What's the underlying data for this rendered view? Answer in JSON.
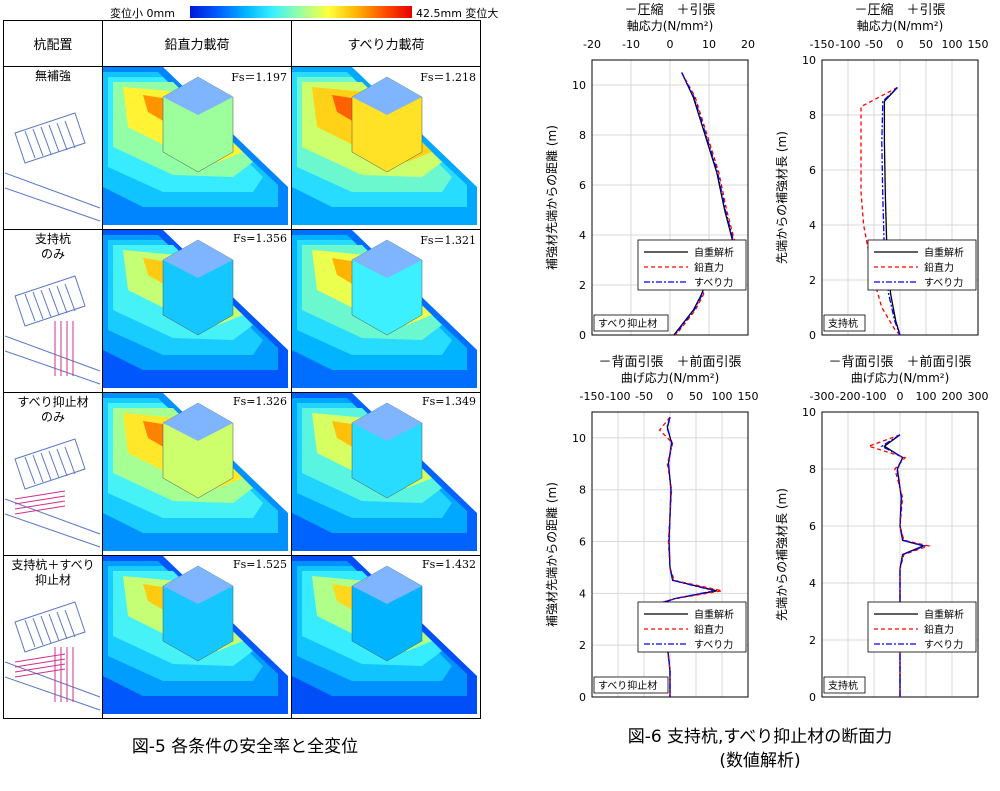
{
  "legend": {
    "small": "変位小 0mm",
    "large": "42.5mm 変位大"
  },
  "table": {
    "header": [
      "杭配置",
      "鉛直力載荷",
      "すべり力載荷"
    ],
    "rows": [
      {
        "label": "無補強",
        "fs_v": "Fs＝1.197",
        "fs_s": "Fs＝1.218",
        "heat": [
          0.55,
          0.7
        ]
      },
      {
        "label": "支持杭\nのみ",
        "fs_v": "Fs=1.356",
        "fs_s": "Fs＝1.321",
        "heat": [
          0.35,
          0.45
        ]
      },
      {
        "label": "すべり抑止材\nのみ",
        "fs_v": "Fs=1.326",
        "fs_s": "Fs=1.349",
        "heat": [
          0.6,
          0.4
        ]
      },
      {
        "label": "支持杭＋すべり\n抑止材",
        "fs_v": "Fs=1.525",
        "fs_s": "Fs=1.432",
        "heat": [
          0.35,
          0.3
        ]
      }
    ]
  },
  "caption5": "図-5 各条件の安全率と全変位",
  "caption6_line1": "図-6 支持杭,すべり抑止材の断面力",
  "caption6_line2": "(数値解析)",
  "chart_data": [
    {
      "type": "line",
      "title": "－圧縮　＋引張",
      "xlabel": "軸応力(N/mm²)",
      "ylabel": "補強材先端からの距離 (m)",
      "xlim": [
        -20,
        20
      ],
      "ylim": [
        0,
        11
      ],
      "xticks": [
        -20,
        -10,
        0,
        10,
        20
      ],
      "yticks": [
        0,
        2,
        4,
        6,
        8,
        10
      ],
      "tag": "すべり抑止材",
      "legend": [
        "自重解析",
        "鉛直力",
        "すべり力"
      ],
      "series": [
        {
          "name": "自重解析",
          "color": "#000000",
          "dash": "",
          "points": [
            [
              3,
              10.5
            ],
            [
              6,
              9.5
            ],
            [
              9,
              8.0
            ],
            [
              12,
              6.5
            ],
            [
              14,
              5.0
            ],
            [
              16,
              3.8
            ],
            [
              13,
              3.2
            ],
            [
              10,
              2.4
            ],
            [
              8,
              1.6
            ],
            [
              6,
              1.0
            ],
            [
              3,
              0.4
            ],
            [
              1,
              0
            ]
          ]
        },
        {
          "name": "鉛直力",
          "color": "#ff0000",
          "dash": "4,3",
          "points": [
            [
              3,
              10.5
            ],
            [
              6.5,
              9.5
            ],
            [
              9.5,
              8.0
            ],
            [
              12.5,
              6.5
            ],
            [
              14.5,
              5.0
            ],
            [
              16.5,
              3.8
            ],
            [
              13.5,
              3.2
            ],
            [
              10.5,
              2.4
            ],
            [
              8.5,
              1.6
            ],
            [
              6.5,
              1.0
            ],
            [
              3.5,
              0.4
            ],
            [
              1.5,
              0
            ]
          ]
        },
        {
          "name": "すべり力",
          "color": "#0000ff",
          "dash": "6,2,2,2",
          "points": [
            [
              3,
              10.5
            ],
            [
              6.2,
              9.5
            ],
            [
              9.2,
              8.0
            ],
            [
              12.2,
              6.5
            ],
            [
              14.2,
              5.0
            ],
            [
              16.2,
              3.8
            ],
            [
              13.2,
              3.2
            ],
            [
              10.2,
              2.4
            ],
            [
              8.2,
              1.6
            ],
            [
              6.2,
              1.0
            ],
            [
              3.2,
              0.4
            ],
            [
              1.2,
              0
            ]
          ]
        }
      ]
    },
    {
      "type": "line",
      "title": "－圧縮　＋引張",
      "xlabel": "軸応力(N/mm²)",
      "ylabel": "先端からの補強材長 (m)",
      "xlim": [
        -150,
        150
      ],
      "ylim": [
        0,
        10
      ],
      "xticks": [
        -150,
        -100,
        -50,
        0,
        50,
        100,
        150
      ],
      "yticks": [
        0,
        2,
        4,
        6,
        8,
        10
      ],
      "tag": "支持杭",
      "legend": [
        "自重解析",
        "鉛直力",
        "すべり力"
      ],
      "series": [
        {
          "name": "自重解析",
          "color": "#000000",
          "dash": "",
          "points": [
            [
              -5,
              9.0
            ],
            [
              -30,
              8.5
            ],
            [
              -30,
              7.0
            ],
            [
              -28,
              5.0
            ],
            [
              -25,
              3.0
            ],
            [
              -18,
              1.5
            ],
            [
              -8,
              0.5
            ],
            [
              0,
              0
            ]
          ]
        },
        {
          "name": "鉛直力",
          "color": "#ff0000",
          "dash": "4,3",
          "points": [
            [
              -5,
              9.0
            ],
            [
              -75,
              8.3
            ],
            [
              -75,
              5.2
            ],
            [
              -70,
              4.0
            ],
            [
              -60,
              3.0
            ],
            [
              -50,
              2.0
            ],
            [
              -35,
              1.0
            ],
            [
              -10,
              0.2
            ],
            [
              0,
              0
            ]
          ]
        },
        {
          "name": "すべり力",
          "color": "#0000ff",
          "dash": "6,2,2,2",
          "points": [
            [
              -5,
              9.0
            ],
            [
              -33,
              8.5
            ],
            [
              -35,
              7.0
            ],
            [
              -33,
              5.0
            ],
            [
              -30,
              3.0
            ],
            [
              -22,
              1.5
            ],
            [
              -10,
              0.5
            ],
            [
              0,
              0
            ]
          ]
        }
      ]
    },
    {
      "type": "line",
      "title": "－背面引張　＋前面引張",
      "xlabel": "曲げ応力(N/mm²)",
      "ylabel": "補強材先端からの距離 (m)",
      "xlim": [
        -150,
        150
      ],
      "ylim": [
        0,
        11
      ],
      "xticks": [
        -150,
        -100,
        -50,
        0,
        50,
        100,
        150
      ],
      "yticks": [
        0,
        2,
        4,
        6,
        8,
        10
      ],
      "tag": "すべり抑止材",
      "legend": [
        "自重解析",
        "鉛直力",
        "すべり力"
      ],
      "series": [
        {
          "name": "自重解析",
          "color": "#000000",
          "dash": "",
          "points": [
            [
              0,
              10.8
            ],
            [
              -5,
              10.4
            ],
            [
              3,
              9.8
            ],
            [
              -3,
              9.0
            ],
            [
              2,
              8.0
            ],
            [
              -2,
              6.0
            ],
            [
              0,
              5.0
            ],
            [
              5,
              4.5
            ],
            [
              90,
              4.1
            ],
            [
              10,
              3.8
            ],
            [
              -20,
              3.6
            ],
            [
              10,
              3.2
            ],
            [
              -5,
              2.8
            ],
            [
              8,
              2.5
            ],
            [
              -5,
              2.0
            ],
            [
              0,
              1.0
            ],
            [
              0,
              0
            ]
          ]
        },
        {
          "name": "鉛直力",
          "color": "#ff0000",
          "dash": "4,3",
          "points": [
            [
              0,
              10.8
            ],
            [
              -20,
              10.3
            ],
            [
              5,
              9.8
            ],
            [
              -5,
              9.0
            ],
            [
              3,
              8.0
            ],
            [
              -3,
              6.0
            ],
            [
              0,
              5.0
            ],
            [
              8,
              4.5
            ],
            [
              100,
              4.1
            ],
            [
              12,
              3.8
            ],
            [
              -25,
              3.6
            ],
            [
              12,
              3.2
            ],
            [
              -7,
              2.8
            ],
            [
              10,
              2.5
            ],
            [
              -6,
              2.0
            ],
            [
              0,
              1.0
            ],
            [
              0,
              0
            ]
          ]
        },
        {
          "name": "すべり力",
          "color": "#0000ff",
          "dash": "6,2,2,2",
          "points": [
            [
              0,
              10.8
            ],
            [
              -6,
              10.4
            ],
            [
              4,
              9.8
            ],
            [
              -3,
              9.0
            ],
            [
              2,
              8.0
            ],
            [
              -2,
              6.0
            ],
            [
              0,
              5.0
            ],
            [
              6,
              4.5
            ],
            [
              85,
              4.1
            ],
            [
              10,
              3.8
            ],
            [
              -22,
              3.6
            ],
            [
              10,
              3.2
            ],
            [
              -5,
              2.8
            ],
            [
              8,
              2.5
            ],
            [
              -5,
              2.0
            ],
            [
              0,
              1.0
            ],
            [
              0,
              0
            ]
          ]
        }
      ]
    },
    {
      "type": "line",
      "title": "－背面引張　＋前面引張",
      "xlabel": "曲げ応力(N/mm²)",
      "ylabel": "先端からの補強材長 (m)",
      "xlim": [
        -300,
        300
      ],
      "ylim": [
        0,
        10
      ],
      "xticks": [
        -300,
        -200,
        -100,
        0,
        100,
        200,
        300
      ],
      "yticks": [
        0,
        2,
        4,
        6,
        8,
        10
      ],
      "tag": "支持杭",
      "legend": [
        "自重解析",
        "鉛直力",
        "すべり力"
      ],
      "series": [
        {
          "name": "自重解析",
          "color": "#000000",
          "dash": "",
          "points": [
            [
              0,
              9.2
            ],
            [
              -60,
              8.8
            ],
            [
              10,
              8.4
            ],
            [
              -10,
              8.0
            ],
            [
              5,
              7.0
            ],
            [
              0,
              6.0
            ],
            [
              10,
              5.5
            ],
            [
              90,
              5.3
            ],
            [
              10,
              5.0
            ],
            [
              0,
              4.5
            ],
            [
              0,
              2.0
            ],
            [
              0,
              0
            ]
          ]
        },
        {
          "name": "鉛直力",
          "color": "#ff0000",
          "dash": "4,3",
          "points": [
            [
              0,
              9.2
            ],
            [
              -120,
              8.8
            ],
            [
              20,
              8.4
            ],
            [
              -20,
              8.0
            ],
            [
              10,
              7.0
            ],
            [
              0,
              6.0
            ],
            [
              15,
              5.5
            ],
            [
              110,
              5.3
            ],
            [
              15,
              5.0
            ],
            [
              0,
              4.5
            ],
            [
              0,
              2.0
            ],
            [
              0,
              0
            ]
          ]
        },
        {
          "name": "すべり力",
          "color": "#0000ff",
          "dash": "6,2,2,2",
          "points": [
            [
              0,
              9.2
            ],
            [
              -70,
              8.8
            ],
            [
              12,
              8.4
            ],
            [
              -12,
              8.0
            ],
            [
              6,
              7.0
            ],
            [
              0,
              6.0
            ],
            [
              12,
              5.5
            ],
            [
              95,
              5.3
            ],
            [
              12,
              5.0
            ],
            [
              0,
              4.5
            ],
            [
              0,
              2.0
            ],
            [
              0,
              0
            ]
          ]
        }
      ]
    }
  ]
}
